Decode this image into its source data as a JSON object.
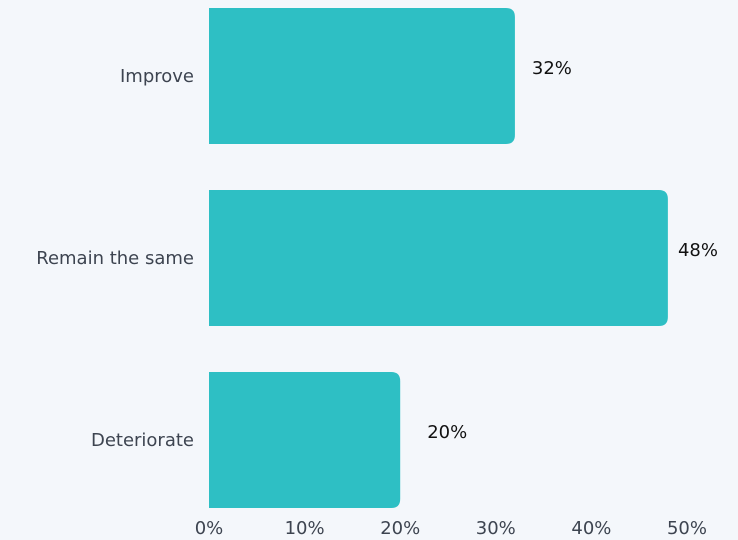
{
  "chart_data": {
    "type": "bar",
    "orientation": "horizontal",
    "categories": [
      "Improve",
      "Remain the same",
      "Deteriorate"
    ],
    "values": [
      32,
      48,
      20
    ],
    "value_labels": [
      "32%",
      "48%",
      "20%"
    ],
    "title": "",
    "xlabel": "",
    "ylabel": "",
    "xlim": [
      0,
      50
    ],
    "x_ticks": [
      0,
      10,
      20,
      30,
      40,
      50
    ],
    "x_tick_labels": [
      "0%",
      "10%",
      "20%",
      "30%",
      "40%",
      "50%"
    ],
    "grid": false,
    "legend": "none",
    "bar_color": "#2ebfc4",
    "background_color": "#f4f7fb"
  }
}
